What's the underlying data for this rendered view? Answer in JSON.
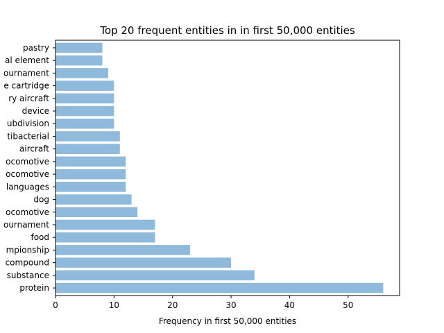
{
  "chart_data": {
    "type": "bar",
    "orientation": "horizontal",
    "title": "Top 20 frequent entities in in first 50,000 entities",
    "xlabel": "Frequency in first 50,000 entities",
    "ylabel": "",
    "xlim": [
      0,
      58.8
    ],
    "x_ticks": [
      0,
      10,
      20,
      30,
      40,
      50
    ],
    "grid": false,
    "bar_color": "#8fbadb",
    "categories": [
      "protein",
      "substance",
      "compound",
      "mpionship",
      "food",
      "ournament",
      "ocomotive",
      "dog",
      "languages",
      "ocomotive",
      "ocomotive",
      "aircraft",
      "tibacterial",
      "ubdivision",
      "device",
      "ry aircraft",
      "e cartridge",
      "ournament",
      "al element",
      "pastry"
    ],
    "values": [
      56,
      34,
      30,
      23,
      17,
      17,
      14,
      13,
      12,
      12,
      12,
      11,
      11,
      10,
      10,
      10,
      10,
      9,
      8,
      8
    ]
  }
}
